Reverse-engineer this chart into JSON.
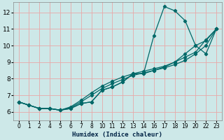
{
  "xlabel": "Humidex (Indice chaleur)",
  "bg_color": "#cde8e8",
  "grid_color": "#e8a8a8",
  "line_color": "#006868",
  "ylim": [
    5.5,
    12.6
  ],
  "yticks": [
    6,
    7,
    8,
    9,
    10,
    11,
    12
  ],
  "xtick_labels": [
    "0",
    "1",
    "2",
    "4",
    "5",
    "6",
    "7",
    "8",
    "10",
    "11",
    "12",
    "13",
    "14",
    "16",
    "17",
    "18",
    "19",
    "20",
    "22",
    "23"
  ],
  "lines": [
    {
      "x": [
        0,
        1,
        2,
        3,
        4,
        5,
        6,
        7,
        8,
        9,
        10,
        11,
        12,
        13,
        14,
        15,
        16,
        17,
        18,
        19
      ],
      "y": [
        6.6,
        6.4,
        6.2,
        6.2,
        6.1,
        6.2,
        6.5,
        6.6,
        7.3,
        7.5,
        7.8,
        8.3,
        8.3,
        10.6,
        12.35,
        12.1,
        11.5,
        10.0,
        9.5,
        11.0
      ]
    },
    {
      "x": [
        0,
        1,
        2,
        3,
        4,
        5,
        6,
        7,
        8,
        9,
        10,
        11,
        12,
        13,
        14,
        15,
        16,
        17,
        18,
        19
      ],
      "y": [
        6.6,
        6.4,
        6.2,
        6.2,
        6.1,
        6.2,
        6.5,
        6.6,
        7.3,
        7.5,
        7.8,
        8.3,
        8.3,
        8.5,
        8.7,
        9.0,
        9.5,
        10.0,
        10.3,
        11.0
      ]
    },
    {
      "x": [
        0,
        1,
        2,
        3,
        4,
        5,
        6,
        7,
        8,
        9,
        10,
        11,
        12,
        13,
        14,
        15,
        16,
        17,
        18,
        19
      ],
      "y": [
        6.6,
        6.4,
        6.2,
        6.2,
        6.1,
        6.25,
        6.6,
        7.0,
        7.4,
        7.7,
        7.95,
        8.2,
        8.35,
        8.5,
        8.65,
        8.85,
        9.1,
        9.5,
        10.0,
        11.0
      ]
    },
    {
      "x": [
        0,
        1,
        2,
        3,
        4,
        5,
        6,
        7,
        8,
        9,
        10,
        11,
        12,
        13,
        14,
        15,
        16,
        17,
        18,
        19
      ],
      "y": [
        6.6,
        6.4,
        6.2,
        6.2,
        6.1,
        6.3,
        6.7,
        7.15,
        7.55,
        7.85,
        8.1,
        8.3,
        8.45,
        8.6,
        8.75,
        9.0,
        9.3,
        9.6,
        10.35,
        11.0
      ]
    }
  ]
}
